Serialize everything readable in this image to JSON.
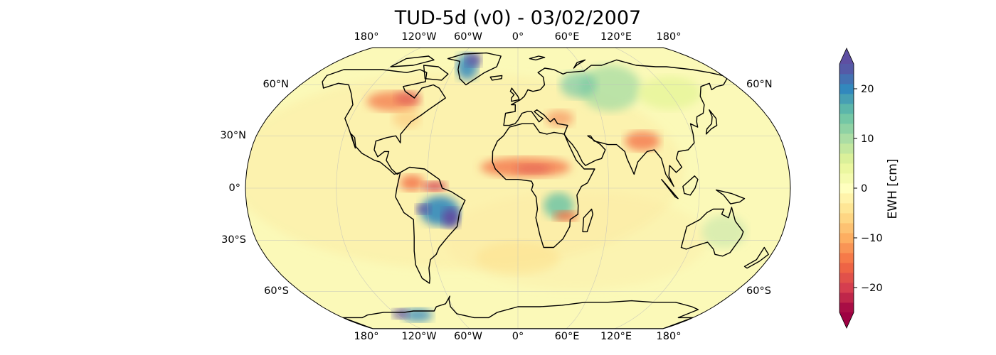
{
  "title": "TUD-5d (v0) - 03/02/2007",
  "map": {
    "projection": "robinson",
    "lon_labels": [
      "180°",
      "120°W",
      "60°W",
      "0°",
      "60°E",
      "120°E",
      "180°"
    ],
    "lat_labels_left": [
      "60°N",
      "30°N",
      "0°",
      "30°S",
      "60°S"
    ],
    "lat_labels_right": [
      "60°N",
      "60°S"
    ],
    "ocean_color": "#fbf9b8",
    "gridlines": true
  },
  "colorbar": {
    "label": "EWH [cm]",
    "range": [
      -25,
      25
    ],
    "ticks": [
      "20",
      "10",
      "0",
      "−10",
      "−20"
    ],
    "tick_values": [
      20,
      10,
      0,
      -10,
      -20
    ],
    "extend": "both",
    "colormap": "Spectral",
    "colors": [
      "#9e0142",
      "#d53e4f",
      "#f46d43",
      "#fdae61",
      "#fee08b",
      "#ffffbf",
      "#e6f598",
      "#abdda4",
      "#66c2a5",
      "#3288bd",
      "#5e4fa2"
    ]
  }
}
